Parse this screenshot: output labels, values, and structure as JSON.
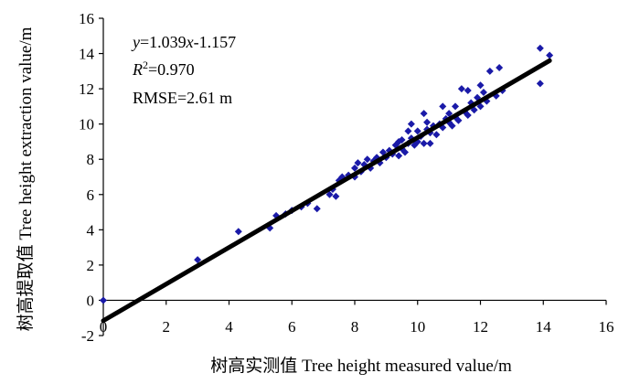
{
  "chart_data": {
    "type": "scatter",
    "title": "",
    "xlabel": "树高实测值 Tree height measured value/m",
    "ylabel": "树高提取值 Tree height extraction value/m",
    "xlim": [
      0,
      16
    ],
    "ylim": [
      -2,
      16
    ],
    "xticks": [
      0,
      2,
      4,
      6,
      8,
      10,
      12,
      14,
      16
    ],
    "yticks": [
      -2,
      0,
      2,
      4,
      6,
      8,
      10,
      12,
      14,
      16
    ],
    "xtick_labels": [
      "0",
      "2",
      "4",
      "6",
      "8",
      "10",
      "12",
      "14",
      "16"
    ],
    "ytick_labels": [
      "-2",
      "0",
      "2",
      "4",
      "6",
      "8",
      "10",
      "12",
      "14",
      "16"
    ],
    "grid": false,
    "legend": "none",
    "marker": "diamond",
    "point_color": "#1a1aa8",
    "line_color": "#000000",
    "annotations": {
      "equation": {
        "y": "y",
        "eq_rest": "=1.039",
        "x": "x",
        "tail": "-1.157"
      },
      "r2": {
        "r": "R",
        "sup": "2",
        "rest": "=0.970"
      },
      "rmse": "RMSE=2.61 m"
    },
    "fit": {
      "slope": 1.039,
      "intercept": -1.157,
      "x_range": [
        0,
        14.2
      ]
    },
    "points": [
      [
        0,
        0
      ],
      [
        3.0,
        2.3
      ],
      [
        4.3,
        3.9
      ],
      [
        5.3,
        4.1
      ],
      [
        5.5,
        4.8
      ],
      [
        5.8,
        4.9
      ],
      [
        6.0,
        5.1
      ],
      [
        6.3,
        5.3
      ],
      [
        6.5,
        5.5
      ],
      [
        6.8,
        5.2
      ],
      [
        7.2,
        6.0
      ],
      [
        7.3,
        6.3
      ],
      [
        7.4,
        5.9
      ],
      [
        7.5,
        6.8
      ],
      [
        7.6,
        7.0
      ],
      [
        7.8,
        7.1
      ],
      [
        8.0,
        7.0
      ],
      [
        8.0,
        7.5
      ],
      [
        8.1,
        7.8
      ],
      [
        8.2,
        7.3
      ],
      [
        8.3,
        7.7
      ],
      [
        8.4,
        8.0
      ],
      [
        8.5,
        7.5
      ],
      [
        8.6,
        7.9
      ],
      [
        8.7,
        8.1
      ],
      [
        8.8,
        7.8
      ],
      [
        9.0,
        8.1
      ],
      [
        9.1,
        8.5
      ],
      [
        9.2,
        8.3
      ],
      [
        9.3,
        8.8
      ],
      [
        9.4,
        8.2
      ],
      [
        9.5,
        8.6
      ],
      [
        9.5,
        9.1
      ],
      [
        9.6,
        8.4
      ],
      [
        9.7,
        8.9
      ],
      [
        9.8,
        9.2
      ],
      [
        9.8,
        10.0
      ],
      [
        9.9,
        8.8
      ],
      [
        10.0,
        9.0
      ],
      [
        10.0,
        9.6
      ],
      [
        10.1,
        9.3
      ],
      [
        10.2,
        8.9
      ],
      [
        10.3,
        9.7
      ],
      [
        10.3,
        10.1
      ],
      [
        10.4,
        9.5
      ],
      [
        10.5,
        9.9
      ],
      [
        10.6,
        9.4
      ],
      [
        10.7,
        10.0
      ],
      [
        10.8,
        9.8
      ],
      [
        10.9,
        10.3
      ],
      [
        11.0,
        10.1
      ],
      [
        11.0,
        10.6
      ],
      [
        11.1,
        9.9
      ],
      [
        11.2,
        10.4
      ],
      [
        11.2,
        11.0
      ],
      [
        11.3,
        10.2
      ],
      [
        11.4,
        12.0
      ],
      [
        11.5,
        10.7
      ],
      [
        11.6,
        10.5
      ],
      [
        11.7,
        11.2
      ],
      [
        11.8,
        10.8
      ],
      [
        11.9,
        11.5
      ],
      [
        12.0,
        11.0
      ],
      [
        12.0,
        12.2
      ],
      [
        12.1,
        11.8
      ],
      [
        12.2,
        11.3
      ],
      [
        12.3,
        13.0
      ],
      [
        12.5,
        11.6
      ],
      [
        12.6,
        13.2
      ],
      [
        12.7,
        11.9
      ],
      [
        13.9,
        12.3
      ],
      [
        13.9,
        14.3
      ],
      [
        14.2,
        13.9
      ],
      [
        10.2,
        10.6
      ],
      [
        9.4,
        9.0
      ],
      [
        8.9,
        8.4
      ],
      [
        10.8,
        11.0
      ],
      [
        11.6,
        11.9
      ],
      [
        10.4,
        8.9
      ],
      [
        9.7,
        9.6
      ]
    ]
  }
}
